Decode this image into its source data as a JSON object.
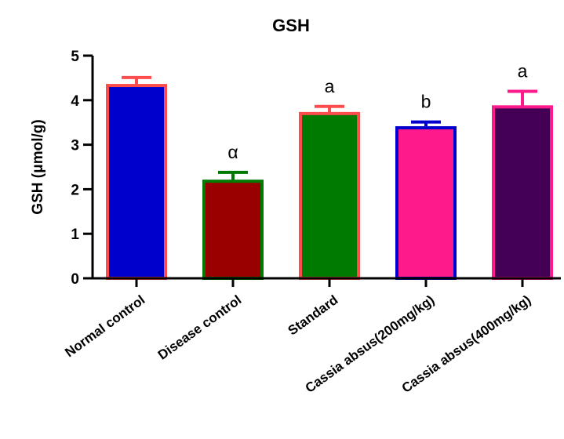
{
  "chart_data": {
    "type": "bar",
    "title": "GSH",
    "ylabel": "GSH (μmol/g)",
    "xlabel": "",
    "ylim": [
      0,
      5
    ],
    "yticks": [
      0,
      1,
      2,
      3,
      4,
      5
    ],
    "grid": false,
    "categories": [
      "Normal control",
      "Disease control",
      "Standard",
      "Cassia absus(200mg/kg)",
      "Cassia absus(400mg/kg)"
    ],
    "values": [
      4.33,
      2.18,
      3.7,
      3.38,
      3.85
    ],
    "errors": [
      0.18,
      0.2,
      0.16,
      0.13,
      0.35
    ],
    "annotations": [
      "",
      "α",
      "a",
      "b",
      "a"
    ],
    "fill_colors": [
      "#0000cc",
      "#990000",
      "#007a00",
      "#ff1a8c",
      "#440055"
    ],
    "border_colors": [
      "#ff4d4d",
      "#007a00",
      "#ff4d4d",
      "#0000cc",
      "#ff1a8c"
    ]
  }
}
